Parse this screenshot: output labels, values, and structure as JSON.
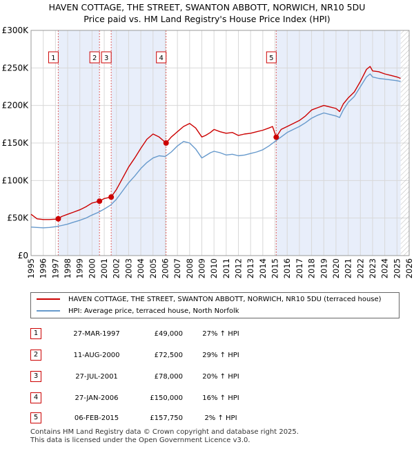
{
  "title_line1": "HAVEN COTTAGE, THE STREET, SWANTON ABBOTT, NORWICH, NR10 5DU",
  "title_line2": "Price paid vs. HM Land Registry's House Price Index (HPI)",
  "chart_data": {
    "type": "line",
    "title": "HAVEN COTTAGE, THE STREET, SWANTON ABBOTT, NORWICH, NR10 5DU",
    "subtitle": "Price paid vs. HM Land Registry's House Price Index (HPI)",
    "xlabel": "",
    "ylabel": "",
    "xlim": [
      1995,
      2026
    ],
    "ylim": [
      0,
      300000
    ],
    "y_ticks": [
      0,
      50000,
      100000,
      150000,
      200000,
      250000,
      300000
    ],
    "y_tick_labels": [
      "£0",
      "£50K",
      "£100K",
      "£150K",
      "£200K",
      "£250K",
      "£300K"
    ],
    "x_ticks": [
      1995,
      1996,
      1997,
      1998,
      1999,
      2000,
      2001,
      2002,
      2003,
      2004,
      2005,
      2006,
      2007,
      2008,
      2009,
      2010,
      2011,
      2012,
      2013,
      2014,
      2015,
      2016,
      2017,
      2018,
      2019,
      2020,
      2021,
      2022,
      2023,
      2024,
      2025,
      2026
    ],
    "x_tick_labels": [
      "1995",
      "1996",
      "1997",
      "1998",
      "1999",
      "2000",
      "2001",
      "2002",
      "2003",
      "2004",
      "2005",
      "2006",
      "2007",
      "2008",
      "2009",
      "2010",
      "2011",
      "2012",
      "2013",
      "2014",
      "2015",
      "2016",
      "2017",
      "2018",
      "2019",
      "2020",
      "2021",
      "2022",
      "2023",
      "2024",
      "2025",
      "2026"
    ],
    "grid": true,
    "series": [
      {
        "name": "HAVEN COTTAGE, THE STREET, SWANTON ABBOTT, NORWICH, NR10 5DU (terraced house)",
        "color": "#cc0000",
        "x": [
          1995.0,
          1995.5,
          1996.0,
          1996.5,
          1997.0,
          1997.23,
          1997.5,
          1998.0,
          1998.5,
          1999.0,
          1999.5,
          2000.0,
          2000.61,
          2001.0,
          2001.57,
          2002.0,
          2002.5,
          2003.0,
          2003.5,
          2004.0,
          2004.5,
          2005.0,
          2005.5,
          2006.07,
          2006.5,
          2007.0,
          2007.5,
          2008.0,
          2008.5,
          2009.0,
          2009.3,
          2009.7,
          2010.0,
          2010.5,
          2011.0,
          2011.5,
          2012.0,
          2012.5,
          2013.0,
          2013.5,
          2014.0,
          2014.5,
          2014.8,
          2015.1,
          2015.5,
          2016.0,
          2016.5,
          2017.0,
          2017.5,
          2018.0,
          2018.5,
          2019.0,
          2019.5,
          2020.0,
          2020.3,
          2020.6,
          2021.0,
          2021.5,
          2022.0,
          2022.5,
          2022.8,
          2023.0,
          2023.5,
          2024.0,
          2024.5,
          2025.0,
          2025.3
        ],
        "y": [
          55000,
          49000,
          48000,
          48000,
          48500,
          49000,
          52000,
          55000,
          58000,
          61000,
          65000,
          70000,
          72500,
          76000,
          78000,
          88000,
          103000,
          118000,
          130000,
          143000,
          155000,
          162000,
          158000,
          150000,
          158000,
          165000,
          172000,
          176000,
          170000,
          158000,
          160000,
          164000,
          168000,
          165000,
          163000,
          164000,
          160000,
          162000,
          163000,
          165000,
          167000,
          170000,
          172000,
          157750,
          168000,
          172000,
          176000,
          180000,
          186000,
          194000,
          197000,
          200000,
          198000,
          196000,
          192000,
          202000,
          210000,
          218000,
          232000,
          248000,
          252000,
          246000,
          245000,
          242000,
          240000,
          238000,
          236000
        ]
      },
      {
        "name": "HPI: Average price, terraced house, North Norfolk",
        "color": "#6699cc",
        "x": [
          1995.0,
          1995.5,
          1996.0,
          1996.5,
          1997.0,
          1997.5,
          1998.0,
          1998.5,
          1999.0,
          1999.5,
          2000.0,
          2000.5,
          2001.0,
          2001.5,
          2002.0,
          2002.5,
          2003.0,
          2003.5,
          2004.0,
          2004.5,
          2005.0,
          2005.5,
          2006.0,
          2006.5,
          2007.0,
          2007.5,
          2008.0,
          2008.5,
          2009.0,
          2009.3,
          2009.7,
          2010.0,
          2010.5,
          2011.0,
          2011.5,
          2012.0,
          2012.5,
          2013.0,
          2013.5,
          2014.0,
          2014.5,
          2015.0,
          2015.5,
          2016.0,
          2016.5,
          2017.0,
          2017.5,
          2018.0,
          2018.5,
          2019.0,
          2019.5,
          2020.0,
          2020.3,
          2020.6,
          2021.0,
          2021.5,
          2022.0,
          2022.5,
          2022.8,
          2023.0,
          2023.5,
          2024.0,
          2024.5,
          2025.0,
          2025.3
        ],
        "y": [
          38000,
          37500,
          37000,
          37500,
          38500,
          40000,
          42000,
          44500,
          47000,
          50000,
          54000,
          57500,
          62000,
          67000,
          75000,
          86000,
          97000,
          106000,
          116000,
          124000,
          130000,
          133000,
          132000,
          138000,
          146000,
          152000,
          150000,
          142000,
          130000,
          133000,
          137000,
          139000,
          137000,
          134000,
          135000,
          133000,
          134000,
          136000,
          138000,
          141000,
          146000,
          152000,
          158000,
          164000,
          168000,
          172000,
          177000,
          183000,
          187000,
          190000,
          188000,
          186000,
          184000,
          194000,
          204000,
          212000,
          225000,
          238000,
          242000,
          238000,
          236000,
          235000,
          234000,
          233000,
          232000
        ]
      }
    ],
    "sales": [
      {
        "num": "1",
        "x": 1997.23,
        "price": 49000
      },
      {
        "num": "2",
        "x": 2000.61,
        "price": 72500
      },
      {
        "num": "3",
        "x": 2001.57,
        "price": 78000
      },
      {
        "num": "4",
        "x": 2006.07,
        "price": 150000
      },
      {
        "num": "5",
        "x": 2015.1,
        "price": 157750
      }
    ],
    "shaded_ranges": [
      [
        1997.23,
        2000.61
      ],
      [
        2001.57,
        2006.07
      ],
      [
        2015.1,
        2025.3
      ]
    ]
  },
  "colors": {
    "price_line": "#cc0000",
    "hpi_line": "#6699cc",
    "shading": "#e8eefa",
    "vline": "#e06060"
  },
  "legend": {
    "items": [
      {
        "label": "HAVEN COTTAGE, THE STREET, SWANTON ABBOTT, NORWICH, NR10 5DU (terraced house)"
      },
      {
        "label": "HPI: Average price, terraced house, North Norfolk"
      }
    ]
  },
  "sales_table": [
    {
      "num": "1",
      "date": "27-MAR-1997",
      "price": "£49,000",
      "hpi": "27% ↑ HPI"
    },
    {
      "num": "2",
      "date": "11-AUG-2000",
      "price": "£72,500",
      "hpi": "29% ↑ HPI"
    },
    {
      "num": "3",
      "date": "27-JUL-2001",
      "price": "£78,000",
      "hpi": "20% ↑ HPI"
    },
    {
      "num": "4",
      "date": "27-JAN-2006",
      "price": "£150,000",
      "hpi": "16% ↑ HPI"
    },
    {
      "num": "5",
      "date": "06-FEB-2015",
      "price": "£157,750",
      "hpi": "2% ↑ HPI"
    }
  ],
  "footer": {
    "line1": "Contains HM Land Registry data © Crown copyright and database right 2025.",
    "line2": "This data is licensed under the Open Government Licence v3.0."
  }
}
